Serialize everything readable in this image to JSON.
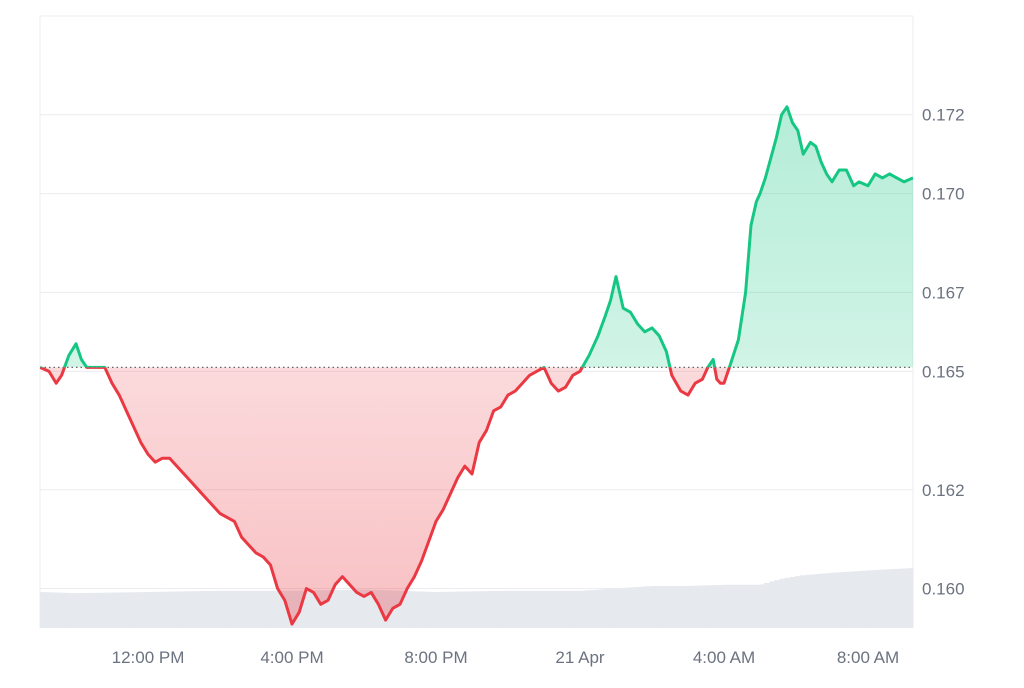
{
  "colors": {
    "up": "#16c784",
    "down": "#ea3943",
    "grid": "#ececf0",
    "volume": "#e6e9ee",
    "baseline": "#666666",
    "axis_text": "#6b7280"
  },
  "chart_data": {
    "type": "area",
    "baseline": 0.1656,
    "ylim": [
      0.159,
      0.1745
    ],
    "y_ticks": [
      {
        "value": 0.172,
        "label": "0.172"
      },
      {
        "value": 0.17,
        "label": "0.170"
      },
      {
        "value": 0.1675,
        "label": "0.167"
      },
      {
        "value": 0.1655,
        "label": "0.165"
      },
      {
        "value": 0.1625,
        "label": "0.162"
      },
      {
        "value": 0.16,
        "label": "0.160"
      }
    ],
    "xlim": [
      9.0,
      33.25
    ],
    "x_ticks": [
      {
        "value": 12,
        "label": "12:00 PM"
      },
      {
        "value": 16,
        "label": "4:00 PM"
      },
      {
        "value": 20,
        "label": "8:00 PM"
      },
      {
        "value": 24,
        "label": "21 Apr"
      },
      {
        "value": 28,
        "label": "4:00 AM"
      },
      {
        "value": 32,
        "label": "8:00 AM"
      }
    ],
    "price": [
      [
        9.0,
        0.1656
      ],
      [
        9.25,
        0.1655
      ],
      [
        9.45,
        0.1652
      ],
      [
        9.6,
        0.1654
      ],
      [
        9.8,
        0.1659
      ],
      [
        10.0,
        0.1662
      ],
      [
        10.15,
        0.1658
      ],
      [
        10.3,
        0.1656
      ],
      [
        10.55,
        0.1656
      ],
      [
        10.8,
        0.1656
      ],
      [
        11.0,
        0.1652
      ],
      [
        11.2,
        0.1649
      ],
      [
        11.4,
        0.1645
      ],
      [
        11.6,
        0.1641
      ],
      [
        11.8,
        0.1637
      ],
      [
        12.0,
        0.1634
      ],
      [
        12.2,
        0.1632
      ],
      [
        12.4,
        0.1633
      ],
      [
        12.6,
        0.1633
      ],
      [
        12.8,
        0.1631
      ],
      [
        13.0,
        0.1629
      ],
      [
        13.2,
        0.1627
      ],
      [
        13.4,
        0.1625
      ],
      [
        13.6,
        0.1623
      ],
      [
        13.8,
        0.1621
      ],
      [
        14.0,
        0.1619
      ],
      [
        14.2,
        0.1618
      ],
      [
        14.4,
        0.1617
      ],
      [
        14.6,
        0.1613
      ],
      [
        14.8,
        0.1611
      ],
      [
        15.0,
        0.1609
      ],
      [
        15.2,
        0.1608
      ],
      [
        15.4,
        0.1606
      ],
      [
        15.6,
        0.16
      ],
      [
        15.8,
        0.1597
      ],
      [
        16.0,
        0.1591
      ],
      [
        16.2,
        0.1594
      ],
      [
        16.4,
        0.16
      ],
      [
        16.6,
        0.1599
      ],
      [
        16.8,
        0.1596
      ],
      [
        17.0,
        0.1597
      ],
      [
        17.2,
        0.1601
      ],
      [
        17.4,
        0.1603
      ],
      [
        17.6,
        0.1601
      ],
      [
        17.8,
        0.1599
      ],
      [
        18.0,
        0.1598
      ],
      [
        18.2,
        0.1599
      ],
      [
        18.4,
        0.1596
      ],
      [
        18.6,
        0.1592
      ],
      [
        18.8,
        0.1595
      ],
      [
        19.0,
        0.1596
      ],
      [
        19.2,
        0.16
      ],
      [
        19.4,
        0.1603
      ],
      [
        19.6,
        0.1607
      ],
      [
        19.8,
        0.1612
      ],
      [
        20.0,
        0.1617
      ],
      [
        20.2,
        0.162
      ],
      [
        20.4,
        0.1624
      ],
      [
        20.6,
        0.1628
      ],
      [
        20.8,
        0.1631
      ],
      [
        21.0,
        0.1629
      ],
      [
        21.2,
        0.1637
      ],
      [
        21.4,
        0.164
      ],
      [
        21.6,
        0.1645
      ],
      [
        21.8,
        0.1646
      ],
      [
        22.0,
        0.1649
      ],
      [
        22.2,
        0.165
      ],
      [
        22.4,
        0.1652
      ],
      [
        22.6,
        0.1654
      ],
      [
        22.8,
        0.1655
      ],
      [
        23.0,
        0.1656
      ],
      [
        23.1,
        0.1654
      ],
      [
        23.2,
        0.1652
      ],
      [
        23.4,
        0.165
      ],
      [
        23.6,
        0.1651
      ],
      [
        23.8,
        0.1654
      ],
      [
        24.0,
        0.1655
      ],
      [
        24.25,
        0.1659
      ],
      [
        24.5,
        0.1664
      ],
      [
        24.7,
        0.1669
      ],
      [
        24.85,
        0.1673
      ],
      [
        25.0,
        0.1679
      ],
      [
        25.2,
        0.1671
      ],
      [
        25.4,
        0.167
      ],
      [
        25.6,
        0.1667
      ],
      [
        25.8,
        0.1665
      ],
      [
        26.0,
        0.1666
      ],
      [
        26.2,
        0.1664
      ],
      [
        26.4,
        0.166
      ],
      [
        26.55,
        0.1654
      ],
      [
        26.8,
        0.165
      ],
      [
        27.0,
        0.1649
      ],
      [
        27.2,
        0.1652
      ],
      [
        27.4,
        0.1653
      ],
      [
        27.55,
        0.1656
      ],
      [
        27.7,
        0.1658
      ],
      [
        27.8,
        0.1653
      ],
      [
        27.9,
        0.1652
      ],
      [
        28.0,
        0.1652
      ],
      [
        28.15,
        0.1656
      ],
      [
        28.4,
        0.1663
      ],
      [
        28.6,
        0.1675
      ],
      [
        28.75,
        0.1692
      ],
      [
        28.9,
        0.1698
      ],
      [
        29.0,
        0.17
      ],
      [
        29.15,
        0.1704
      ],
      [
        29.3,
        0.1709
      ],
      [
        29.45,
        0.1714
      ],
      [
        29.6,
        0.172
      ],
      [
        29.75,
        0.1722
      ],
      [
        29.9,
        0.1718
      ],
      [
        30.05,
        0.1716
      ],
      [
        30.2,
        0.171
      ],
      [
        30.4,
        0.1713
      ],
      [
        30.55,
        0.1712
      ],
      [
        30.7,
        0.1708
      ],
      [
        30.85,
        0.1705
      ],
      [
        31.0,
        0.1703
      ],
      [
        31.2,
        0.1706
      ],
      [
        31.4,
        0.1706
      ],
      [
        31.6,
        0.1702
      ],
      [
        31.75,
        0.1703
      ],
      [
        32.0,
        0.1702
      ],
      [
        32.2,
        0.1705
      ],
      [
        32.4,
        0.1704
      ],
      [
        32.6,
        0.1705
      ],
      [
        32.8,
        0.1704
      ],
      [
        33.0,
        0.1703
      ],
      [
        33.25,
        0.1704
      ]
    ],
    "volume": [
      [
        9.0,
        0.3
      ],
      [
        10.0,
        0.29
      ],
      [
        12.0,
        0.3
      ],
      [
        14.0,
        0.31
      ],
      [
        16.0,
        0.31
      ],
      [
        18.0,
        0.32
      ],
      [
        20.0,
        0.3
      ],
      [
        22.0,
        0.31
      ],
      [
        24.0,
        0.31
      ],
      [
        25.0,
        0.33
      ],
      [
        26.0,
        0.35
      ],
      [
        27.0,
        0.35
      ],
      [
        28.0,
        0.36
      ],
      [
        29.0,
        0.36
      ],
      [
        29.6,
        0.41
      ],
      [
        30.2,
        0.44
      ],
      [
        31.0,
        0.46
      ],
      [
        32.0,
        0.48
      ],
      [
        33.25,
        0.5
      ]
    ]
  }
}
